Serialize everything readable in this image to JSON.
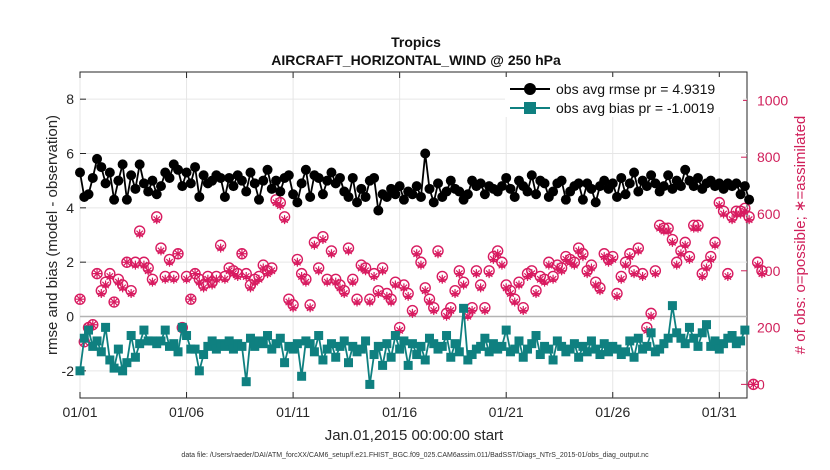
{
  "chart_data": {
    "type": "line",
    "title": "Tropics",
    "subtitle": "AIRCRAFT_HORIZONTAL_WIND @ 250 hPa",
    "xlabel": "Jan.01,2015 00:00:00 start",
    "ylabel": "rmse and bias (model - observation)",
    "ylabel_right": "# of obs: o=possible; ∗=assimilated",
    "footnote": "data file: /Users/raeder/DAI/ATM_forcXX/CAM6_setup/f.e21.FHIST_BGC.f09_025.CAM6assim.011/BadSST/Diags_NTrS_2015-01/obs_diag_output.nc",
    "xlim": [
      1,
      32.3
    ],
    "ylim": [
      -3,
      9
    ],
    "ylim_right": [
      -48,
      1100
    ],
    "x_ticks": [
      1,
      6,
      11,
      16,
      21,
      26,
      31
    ],
    "x_tick_labels": [
      "01/01",
      "01/06",
      "01/11",
      "01/16",
      "01/21",
      "01/26",
      "01/31"
    ],
    "y_ticks": [
      -2,
      0,
      2,
      4,
      6,
      8
    ],
    "y_tick_labels": [
      "-2",
      "0",
      "2",
      "4",
      "6",
      "8"
    ],
    "y_ticks_right": [
      0,
      200,
      400,
      600,
      800,
      1000
    ],
    "y_tick_labels_right": [
      "0",
      "200",
      "400",
      "600",
      "800",
      "1000"
    ],
    "zero_line": 0,
    "grid": true,
    "legend_position": "top-right",
    "colors": {
      "rmse": "#000000",
      "bias": "#0f8080",
      "obs": "#d81b60",
      "zero": "#b3b3b3"
    },
    "series": [
      {
        "name": "obs avg rmse pr = 4.9319",
        "legend_label": "obs avg rmse pr = 4.9319",
        "marker": "circle",
        "values": [
          5.3,
          4.4,
          4.5,
          5.1,
          5.8,
          5.5,
          4.9,
          5.3,
          4.3,
          5.0,
          5.6,
          4.3,
          5.2,
          4.7,
          5.6,
          4.9,
          4.6,
          5.0,
          4.5,
          4.8,
          5.3,
          5.1,
          5.6,
          5.4,
          4.8,
          5.3,
          4.9,
          5.5,
          4.4,
          5.2,
          4.9,
          5.0,
          5.2,
          5.1,
          4.4,
          5.1,
          4.8,
          5.2,
          5.0,
          4.6,
          5.3,
          4.9,
          4.3,
          5.0,
          5.4,
          4.7,
          5.0,
          4.6,
          5.1,
          5.2,
          4.5,
          4.2,
          4.9,
          5.4,
          4.4,
          5.2,
          5.1,
          4.5,
          5.0,
          5.3,
          4.9,
          5.1,
          4.6,
          4.4,
          5.1,
          4.2,
          4.7,
          4.4,
          5.0,
          5.1,
          3.9,
          4.5,
          4.4,
          4.7,
          4.5,
          4.8,
          4.3,
          4.6,
          4.5,
          4.8,
          4.4,
          6.0,
          4.7,
          4.2,
          4.9,
          4.4,
          4.6,
          5.0,
          4.7,
          4.6,
          4.3,
          4.5,
          5.0,
          4.8,
          4.9,
          4.5,
          4.8,
          4.7,
          4.6,
          4.8,
          5.1,
          4.7,
          4.4,
          5.0,
          4.8,
          4.6,
          5.2,
          4.5,
          5.0,
          4.9,
          4.4,
          4.6,
          4.9,
          5.0,
          4.3,
          4.6,
          4.8,
          4.9,
          4.3,
          4.9,
          4.7,
          4.2,
          4.8,
          5.0,
          4.7,
          4.9,
          4.4,
          5.1,
          4.5,
          4.9,
          5.3,
          4.6,
          5.0,
          4.8,
          5.2,
          4.9,
          4.6,
          4.8,
          5.2,
          4.7,
          5.0,
          4.8,
          5.4,
          5.0,
          4.8,
          5.1,
          4.7,
          4.9,
          5.0,
          4.8,
          4.9,
          4.7,
          4.9,
          4.8,
          4.9,
          4.5,
          4.8,
          4.3
        ]
      },
      {
        "name": "obs avg bias pr = -1.0019",
        "legend_label": "obs avg bias pr = -1.0019",
        "marker": "square",
        "values": [
          -2.0,
          -0.8,
          -0.5,
          -1.1,
          -0.9,
          -1.3,
          -0.4,
          -1.6,
          -1.9,
          -1.2,
          -2.0,
          -1.7,
          -0.7,
          -1.5,
          -1.0,
          -0.5,
          -0.9,
          -0.9,
          -1.0,
          -0.9,
          -0.5,
          -1.1,
          -1.0,
          -1.3,
          -0.4,
          -0.7,
          -1.2,
          -1.2,
          -2.0,
          -1.4,
          -1.1,
          -0.9,
          -1.2,
          -1.0,
          -1.1,
          -0.9,
          -1.2,
          -1.0,
          -1.1,
          -2.4,
          -0.8,
          -1.1,
          -0.9,
          -1.0,
          -0.7,
          -1.2,
          -1.0,
          -0.8,
          -1.7,
          -1.1,
          -1.2,
          -1.0,
          -2.2,
          -0.9,
          -1.0,
          -1.3,
          -0.7,
          -1.6,
          -1.2,
          -1.0,
          -1.5,
          -1.1,
          -0.9,
          -1.7,
          -1.1,
          -1.3,
          -1.2,
          -0.9,
          -2.5,
          -1.4,
          -1.1,
          -1.8,
          -1.0,
          -1.5,
          -0.7,
          -1.2,
          -0.9,
          -1.8,
          -1.0,
          -1.4,
          -1.1,
          -1.6,
          -0.8,
          -1.0,
          -1.2,
          -1.1,
          -0.7,
          -1.5,
          -1.0,
          -1.3,
          0.3,
          -1.6,
          -1.4,
          -1.2,
          -1.1,
          -0.8,
          -1.3,
          -1.0,
          -1.2,
          -1.1,
          -0.5,
          -1.3,
          -1.2,
          -0.9,
          -1.5,
          -1.2,
          -1.0,
          -0.7,
          -1.4,
          -1.1,
          -1.2,
          -1.6,
          -0.9,
          -1.1,
          -1.3,
          -1.2,
          -1.0,
          -1.5,
          -1.1,
          -1.3,
          -0.9,
          -1.2,
          -1.4,
          -1.0,
          -1.3,
          -1.1,
          -1.2,
          -1.4,
          -1.3,
          -0.9,
          -1.5,
          -0.8,
          -1.2,
          -1.1,
          -0.6,
          -1.3,
          -1.2,
          -1.0,
          -0.8,
          0.4,
          -0.6,
          -0.8,
          -1.0,
          -0.4,
          -0.8,
          -1.1,
          -0.6,
          -0.3,
          -1.1,
          -0.9,
          -1.2,
          -1.0,
          -0.8,
          -0.7,
          -1.0,
          -0.9,
          -0.5
        ]
      },
      {
        "name": "obs possible",
        "marker": "circle-open",
        "values": [
          300,
          150,
          200,
          210,
          390,
          330,
          360,
          390,
          290,
          370,
          350,
          430,
          330,
          430,
          540,
          430,
          410,
          370,
          590,
          480,
          380,
          440,
          380,
          460,
          200,
          380,
          300,
          390,
          370,
          350,
          380,
          360,
          380,
          490,
          380,
          410,
          400,
          390,
          460,
          390,
          350,
          370,
          380,
          420,
          400,
          410,
          650,
          640,
          590,
          300,
          280,
          440,
          390,
          370,
          280,
          500,
          410,
          520,
          370,
          470,
          370,
          350,
          330,
          480,
          370,
          300,
          420,
          410,
          300,
          390,
          330,
          410,
          320,
          300,
          360,
          200,
          350,
          320,
          260,
          470,
          430,
          340,
          300,
          270,
          470,
          380,
          250,
          270,
          330,
          400,
          360,
          250,
          270,
          400,
          350,
          270,
          400,
          450,
          470,
          430,
          350,
          330,
          300,
          360,
          270,
          390,
          400,
          330,
          380,
          370,
          430,
          380,
          420,
          410,
          450,
          440,
          430,
          480,
          460,
          400,
          420,
          360,
          340,
          460,
          440,
          450,
          320,
          380,
          430,
          460,
          400,
          480,
          390,
          200,
          250,
          400,
          560,
          550,
          550,
          510,
          430,
          470,
          500,
          450,
          560,
          560,
          390,
          420,
          450,
          500,
          640,
          610,
          390,
          590,
          610,
          610,
          620,
          590,
          0,
          430,
          400
        ]
      },
      {
        "name": "obs assimilated",
        "marker": "asterisk",
        "values": [
          300,
          150,
          200,
          210,
          390,
          320,
          350,
          380,
          290,
          360,
          340,
          430,
          320,
          420,
          530,
          420,
          400,
          360,
          580,
          470,
          370,
          430,
          370,
          460,
          200,
          370,
          300,
          390,
          360,
          340,
          370,
          350,
          370,
          480,
          370,
          400,
          390,
          380,
          460,
          380,
          340,
          360,
          370,
          410,
          390,
          400,
          640,
          630,
          580,
          290,
          270,
          430,
          380,
          360,
          270,
          490,
          400,
          510,
          360,
          460,
          360,
          340,
          320,
          470,
          360,
          290,
          410,
          400,
          290,
          380,
          320,
          400,
          310,
          290,
          350,
          190,
          340,
          310,
          250,
          460,
          420,
          330,
          290,
          260,
          460,
          370,
          240,
          260,
          320,
          390,
          350,
          240,
          260,
          390,
          340,
          260,
          390,
          440,
          460,
          420,
          340,
          320,
          290,
          350,
          260,
          380,
          390,
          320,
          370,
          360,
          420,
          370,
          410,
          400,
          440,
          430,
          420,
          470,
          450,
          390,
          410,
          350,
          330,
          450,
          430,
          440,
          310,
          370,
          420,
          450,
          390,
          470,
          380,
          190,
          240,
          390,
          550,
          540,
          540,
          500,
          420,
          460,
          490,
          440,
          550,
          550,
          380,
          410,
          440,
          490,
          630,
          600,
          380,
          580,
          600,
          600,
          610,
          580,
          0,
          420,
          390
        ]
      }
    ]
  }
}
